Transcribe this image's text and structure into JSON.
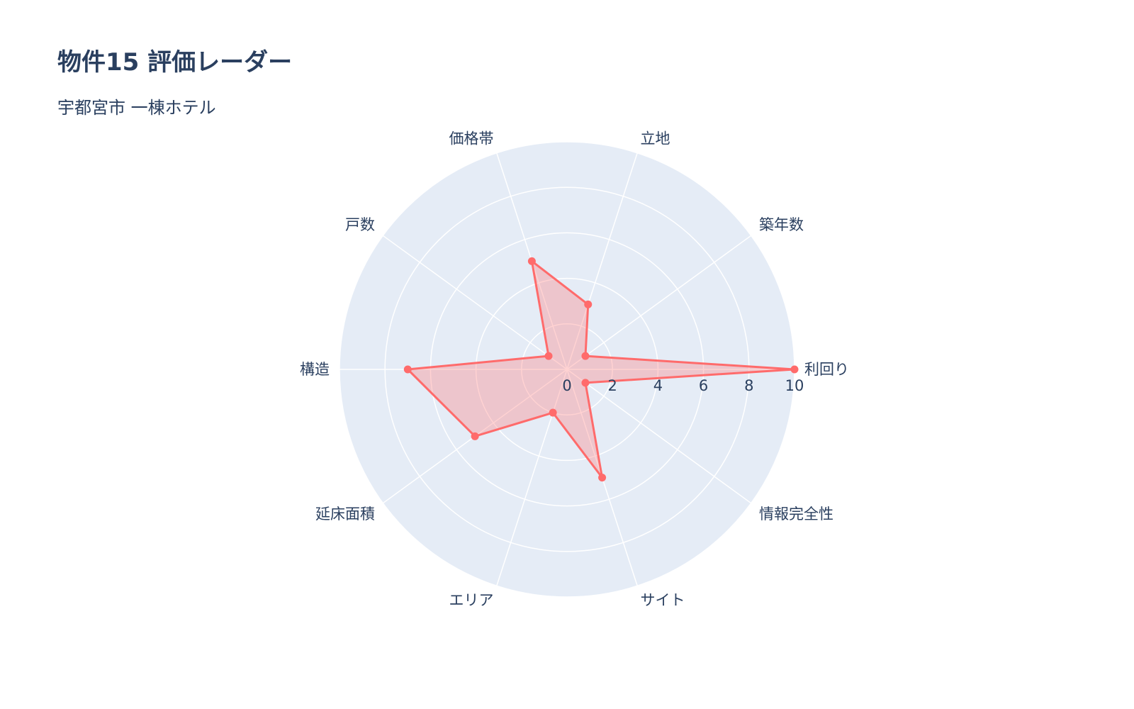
{
  "chart_data": {
    "type": "radar",
    "title": "物件15 評価レーダー",
    "subtitle": "宇都宮市 一棟ホテル",
    "categories": [
      "利回り",
      "築年数",
      "立地",
      "価格帯",
      "戸数",
      "構造",
      "延床面積",
      "エリア",
      "サイト",
      "情報完全性"
    ],
    "values": [
      10,
      1,
      3,
      5,
      1,
      7,
      5,
      2,
      5,
      1
    ],
    "radial_range": [
      0,
      10
    ],
    "radial_ticks": [
      "0",
      "2",
      "4",
      "6",
      "8",
      "10"
    ],
    "grid": true,
    "colors": {
      "line": "#ff6b6b",
      "fill": "rgba(255,107,107,0.3)",
      "polar_bg": "#e5ecf6",
      "grid": "#ffffff",
      "text": "#2a3f5f"
    }
  }
}
